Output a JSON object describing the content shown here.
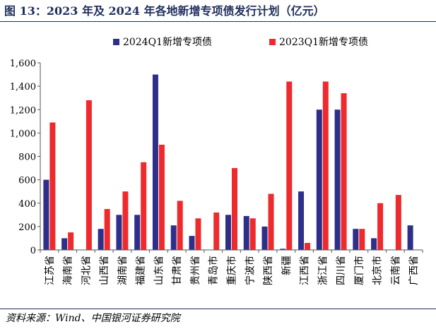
{
  "figure": {
    "title": "图 13：2023 年及 2024 年各地新增专项债发行计划（亿元）",
    "source": "资料来源：Wind、中国银河证券研究院"
  },
  "colors": {
    "series_2024": "#2e2f8a",
    "series_2023": "#ee2a2d",
    "title": "#1f2f5c",
    "axis": "#555555"
  },
  "chart_data": {
    "type": "bar",
    "categories": [
      "江苏省",
      "海南省",
      "河北省",
      "山西省",
      "湖南省",
      "福建省",
      "山东省",
      "甘肃省",
      "贵州省",
      "青岛市",
      "重庆市",
      "宁波市",
      "陕西省",
      "新疆",
      "江西省",
      "浙江省",
      "四川省",
      "厦门市",
      "北京市",
      "云南省",
      "广西省"
    ],
    "series": [
      {
        "name": "2024Q1新增专项债",
        "values": [
          600,
          100,
          0,
          180,
          300,
          300,
          1500,
          210,
          120,
          0,
          300,
          290,
          200,
          10,
          500,
          1200,
          1200,
          180,
          100,
          0,
          210
        ]
      },
      {
        "name": "2023Q1新增专项债",
        "values": [
          1090,
          150,
          1280,
          350,
          500,
          750,
          900,
          420,
          270,
          320,
          700,
          270,
          480,
          1440,
          60,
          1440,
          1340,
          180,
          400,
          470,
          0
        ]
      }
    ],
    "yticks": [
      "0",
      "200",
      "400",
      "600",
      "800",
      "1,000",
      "1,200",
      "1,400",
      "1,600"
    ],
    "ylim": [
      0,
      1600
    ],
    "legend_position": "top",
    "grid": false,
    "xlabel": "",
    "ylabel": ""
  }
}
